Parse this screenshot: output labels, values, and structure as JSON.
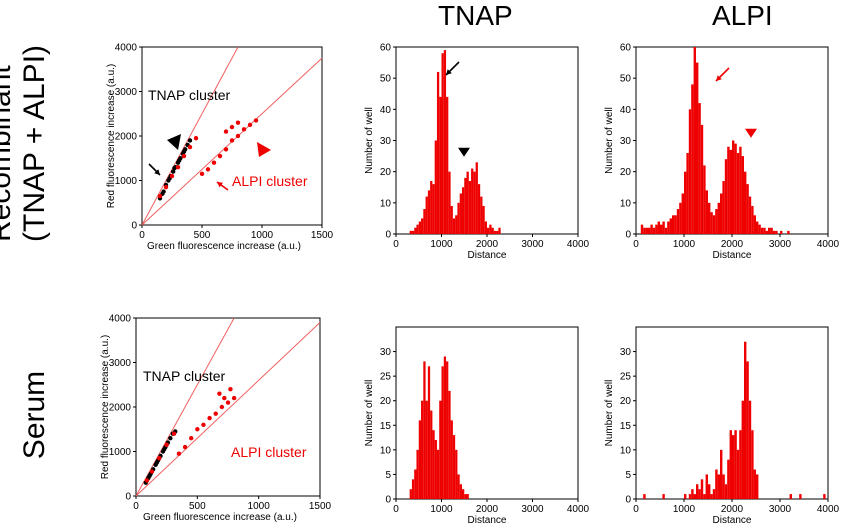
{
  "column_titles": [
    "TNAP",
    "ALPI"
  ],
  "row_labels": {
    "top_line1": "Recombinant",
    "top_line2": "(TNAP + ALPI)",
    "bottom": "Serum"
  },
  "colors": {
    "red": "#ee0000",
    "black": "#000000",
    "axis": "#000000"
  },
  "chart_data": [
    {
      "id": "scatter-recombinant",
      "type": "scatter",
      "xlabel": "Green fluorescence increase (a.u.)",
      "ylabel": "Red fluorescence increase (a.u.)",
      "xlim": [
        0,
        1500
      ],
      "ylim": [
        0,
        4000
      ],
      "xticks": [
        0,
        500,
        1000,
        1500
      ],
      "yticks": [
        0,
        1000,
        2000,
        3000,
        4000
      ],
      "reference_lines": [
        {
          "slope": 5.0
        },
        {
          "slope": 2.5
        }
      ],
      "series": [
        {
          "color": "#000000",
          "points": [
            [
              150,
              600
            ],
            [
              180,
              750
            ],
            [
              200,
              900
            ],
            [
              220,
              1000
            ],
            [
              240,
              1100
            ],
            [
              260,
              1200
            ],
            [
              280,
              1300
            ],
            [
              300,
              1400
            ],
            [
              320,
              1500
            ],
            [
              340,
              1600
            ],
            [
              360,
              1700
            ],
            [
              380,
              1800
            ],
            [
              400,
              1900
            ],
            [
              170,
              700
            ],
            [
              230,
              1050
            ],
            [
              270,
              1280
            ],
            [
              310,
              1450
            ],
            [
              350,
              1650
            ]
          ]
        },
        {
          "color": "#ee0000",
          "points": [
            [
              150,
              650
            ],
            [
              200,
              850
            ],
            [
              250,
              1100
            ],
            [
              300,
              1300
            ],
            [
              350,
              1550
            ],
            [
              400,
              1750
            ],
            [
              450,
              1950
            ],
            [
              500,
              1150
            ],
            [
              550,
              1250
            ],
            [
              600,
              1400
            ],
            [
              650,
              1550
            ],
            [
              700,
              1700
            ],
            [
              750,
              1900
            ],
            [
              800,
              2000
            ],
            [
              850,
              2150
            ],
            [
              900,
              2250
            ],
            [
              950,
              2350
            ],
            [
              700,
              2100
            ],
            [
              750,
              2200
            ],
            [
              800,
              2300
            ]
          ]
        }
      ],
      "annotations": [
        {
          "text": "TNAP cluster",
          "color": "#000000"
        },
        {
          "text": "ALPI cluster",
          "color": "#ee0000"
        }
      ]
    },
    {
      "id": "hist-tnap-recombinant",
      "type": "bar",
      "xlabel": "Distance",
      "ylabel": "Number of well",
      "xlim": [
        0,
        4000
      ],
      "ylim": [
        0,
        60
      ],
      "xticks": [
        0,
        1000,
        2000,
        3000,
        4000
      ],
      "yticks": [
        0,
        10,
        20,
        30,
        40,
        50,
        60
      ],
      "bin_width": 50,
      "bins_start": 300,
      "values": [
        1,
        1,
        2,
        3,
        4,
        5,
        8,
        12,
        14,
        17,
        16,
        30,
        52,
        44,
        58,
        59,
        44,
        20,
        9,
        5,
        6,
        10,
        13,
        15,
        18,
        20,
        17,
        21,
        20,
        23,
        16,
        12,
        9,
        4,
        2,
        3,
        2,
        1,
        1,
        2
      ]
    },
    {
      "id": "hist-alpi-recombinant",
      "type": "bar",
      "xlabel": "Distance",
      "ylabel": "Number of well",
      "xlim": [
        0,
        4000
      ],
      "ylim": [
        0,
        60
      ],
      "xticks": [
        0,
        1000,
        2000,
        3000,
        4000
      ],
      "yticks": [
        0,
        10,
        20,
        30,
        40,
        50,
        60
      ],
      "bin_width": 50,
      "bins_start": 100,
      "values": [
        3,
        2,
        2,
        2,
        3,
        2,
        3,
        4,
        3,
        4,
        2,
        4,
        5,
        6,
        6,
        8,
        10,
        13,
        20,
        26,
        40,
        48,
        62,
        55,
        42,
        35,
        22,
        14,
        10,
        7,
        6,
        8,
        10,
        13,
        17,
        24,
        28,
        27,
        30,
        29,
        26,
        28,
        25,
        20,
        16,
        12,
        9,
        6,
        4,
        3,
        2,
        2,
        1,
        2,
        2,
        1,
        1,
        0,
        1,
        0,
        0,
        1
      ]
    },
    {
      "id": "scatter-serum",
      "type": "scatter",
      "xlabel": "Green fluorescence increase (a.u.)",
      "ylabel": "Red fluorescence increase (a.u.)",
      "xlim": [
        0,
        1500
      ],
      "ylim": [
        0,
        4000
      ],
      "xticks": [
        0,
        500,
        1000,
        1500
      ],
      "yticks": [
        0,
        1000,
        2000,
        3000,
        4000
      ],
      "reference_lines": [
        {
          "slope": 5.0
        },
        {
          "slope": 2.6
        }
      ],
      "series": [
        {
          "color": "#000000",
          "points": [
            [
              80,
              300
            ],
            [
              100,
              400
            ],
            [
              120,
              500
            ],
            [
              140,
              600
            ],
            [
              160,
              700
            ],
            [
              180,
              800
            ],
            [
              200,
              900
            ],
            [
              220,
              1000
            ],
            [
              240,
              1100
            ],
            [
              260,
              1200
            ],
            [
              280,
              1300
            ],
            [
              300,
              1400
            ],
            [
              320,
              1450
            ],
            [
              110,
              450
            ],
            [
              170,
              750
            ],
            [
              230,
              1050
            ]
          ]
        },
        {
          "color": "#ee0000",
          "points": [
            [
              90,
              350
            ],
            [
              130,
              550
            ],
            [
              190,
              850
            ],
            [
              250,
              1150
            ],
            [
              310,
              1400
            ],
            [
              350,
              950
            ],
            [
              400,
              1100
            ],
            [
              450,
              1300
            ],
            [
              500,
              1500
            ],
            [
              550,
              1600
            ],
            [
              600,
              1750
            ],
            [
              650,
              1850
            ],
            [
              700,
              2000
            ],
            [
              750,
              2100
            ],
            [
              800,
              2200
            ],
            [
              680,
              2300
            ],
            [
              720,
              2200
            ],
            [
              770,
              2400
            ]
          ]
        }
      ],
      "annotations": [
        {
          "text": "TNAP cluster",
          "color": "#000000"
        },
        {
          "text": "ALPI cluster",
          "color": "#ee0000"
        }
      ]
    },
    {
      "id": "hist-tnap-serum",
      "type": "bar",
      "xlabel": "Distance",
      "ylabel": "Number of well",
      "xlim": [
        0,
        4000
      ],
      "ylim": [
        0,
        35
      ],
      "xticks": [
        0,
        1000,
        2000,
        3000,
        4000
      ],
      "yticks": [
        0,
        5,
        10,
        15,
        20,
        25,
        30
      ],
      "bin_width": 50,
      "bins_start": 300,
      "values": [
        2,
        4,
        6,
        10,
        16,
        20,
        28,
        20,
        27,
        18,
        14,
        12,
        10,
        20,
        27,
        29,
        28,
        22,
        16,
        13,
        10,
        5,
        3,
        2,
        1,
        1
      ]
    },
    {
      "id": "hist-alpi-serum",
      "type": "bar",
      "xlabel": "Distance",
      "ylabel": "Number of well",
      "xlim": [
        0,
        4000
      ],
      "ylim": [
        0,
        35
      ],
      "xticks": [
        0,
        1000,
        2000,
        3000,
        4000
      ],
      "yticks": [
        0,
        5,
        10,
        15,
        20,
        25,
        30
      ],
      "bin_width": 50,
      "bins": [
        [
          150,
          1
        ],
        [
          550,
          1
        ],
        [
          1000,
          1
        ],
        [
          1100,
          1
        ],
        [
          1150,
          2
        ],
        [
          1200,
          1
        ],
        [
          1250,
          3
        ],
        [
          1300,
          2
        ],
        [
          1350,
          4
        ],
        [
          1400,
          1
        ],
        [
          1450,
          5
        ],
        [
          1500,
          3
        ],
        [
          1550,
          1
        ],
        [
          1600,
          2
        ],
        [
          1650,
          6
        ],
        [
          1700,
          5
        ],
        [
          1750,
          10
        ],
        [
          1800,
          5
        ],
        [
          1850,
          3
        ],
        [
          1900,
          8
        ],
        [
          1950,
          14
        ],
        [
          2000,
          13
        ],
        [
          2050,
          14
        ],
        [
          2100,
          10
        ],
        [
          2150,
          14
        ],
        [
          2200,
          20
        ],
        [
          2250,
          32
        ],
        [
          2300,
          28
        ],
        [
          2350,
          20
        ],
        [
          2400,
          14
        ],
        [
          2450,
          6
        ],
        [
          2500,
          5
        ],
        [
          3200,
          1
        ],
        [
          3400,
          1
        ],
        [
          3900,
          1
        ]
      ]
    }
  ]
}
